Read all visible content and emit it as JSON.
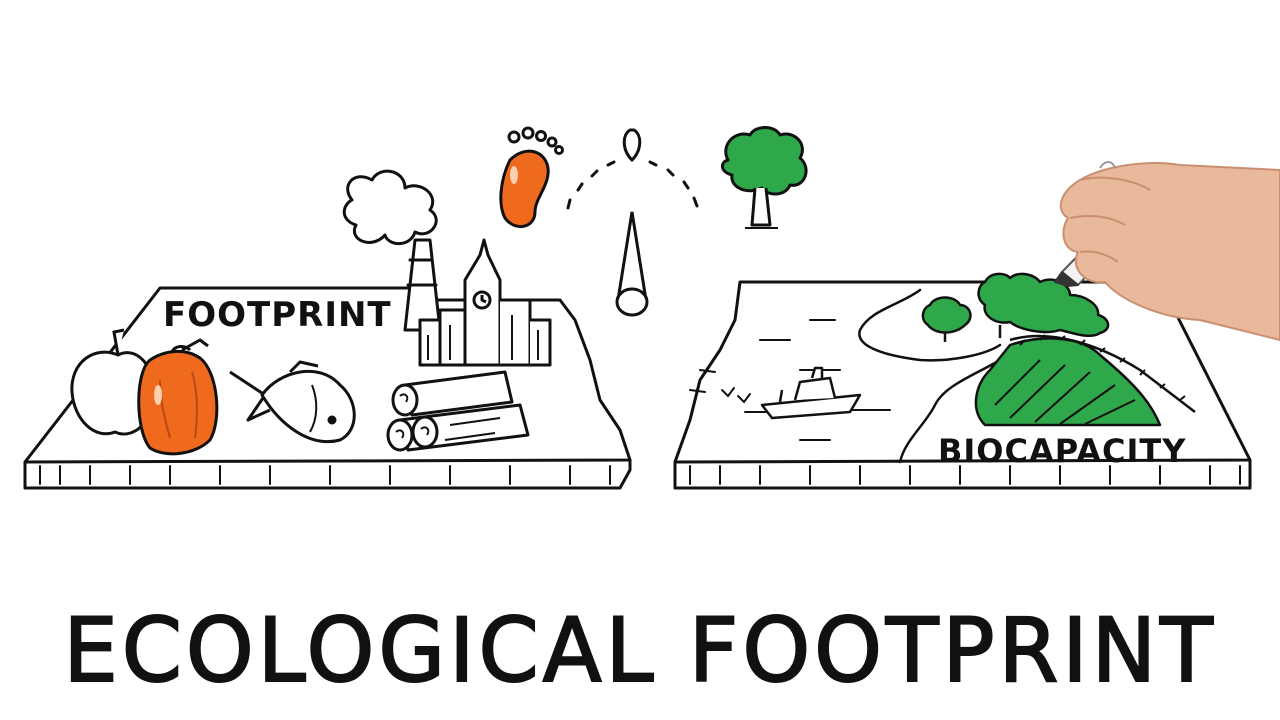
{
  "labels": {
    "footprint_board": "FOOTPRINT",
    "biocapacity_board": "BIOCAPACITY"
  },
  "title": "ECOLOGICAL FOOTPRINT",
  "colors": {
    "ink": "#111111",
    "orange": "#f06a1e",
    "green": "#2ea84a",
    "background": "#ffffff"
  },
  "icons": {
    "footprint_items": [
      "apple-icon",
      "pepper-icon",
      "fish-icon",
      "logs-icon",
      "city-icon",
      "factory-smoke-icon"
    ],
    "biocapacity_items": [
      "boat-icon",
      "birds-icon",
      "forest-icon",
      "farmland-icon",
      "river-icon"
    ],
    "scale_items": [
      "footprint-icon",
      "balance-needle-icon",
      "tree-icon"
    ],
    "drawing_hand": "hand-with-marker-icon"
  }
}
